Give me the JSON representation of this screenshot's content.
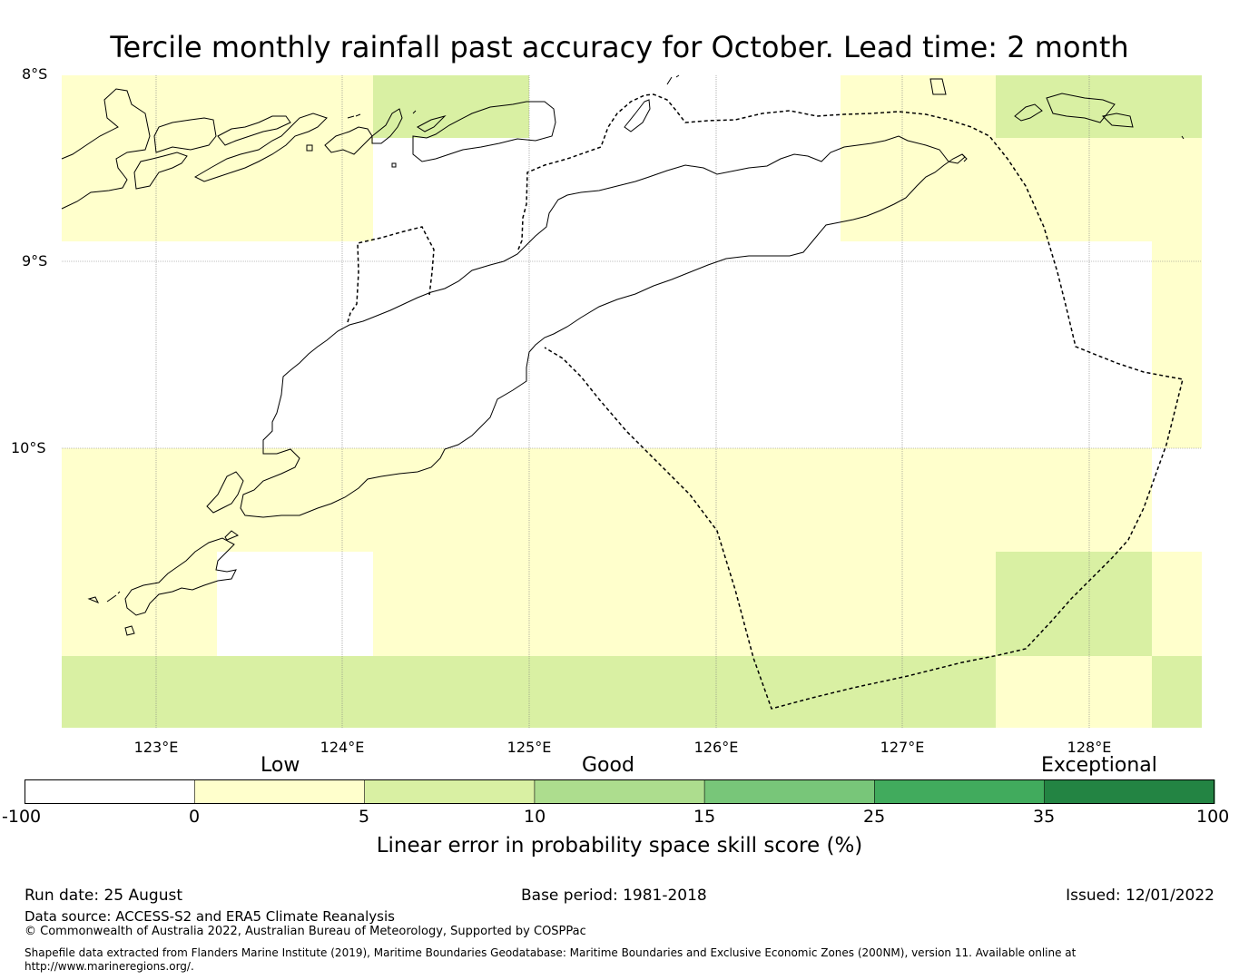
{
  "title": "Tercile monthly rainfall past accuracy for October. Lead time: 2 month",
  "map": {
    "lat_labels": [
      "8°S",
      "9°S",
      "10°S"
    ],
    "lon_labels": [
      "123°E",
      "124°E",
      "125°E",
      "126°E",
      "127°E",
      "128°E"
    ],
    "colors": {
      "white": "#ffffff",
      "low": "#ffffcc",
      "good1": "#d9f0a3",
      "good2": "#addd8e",
      "good3": "#78c679",
      "high1": "#41ab5d",
      "high2": "#238443",
      "coast": "#000000",
      "grid": "#808080"
    }
  },
  "colorbar": {
    "categories": [
      "Low",
      "Good",
      "Exceptional"
    ],
    "ticks": [
      "-100",
      "0",
      "5",
      "10",
      "15",
      "25",
      "35",
      "100"
    ],
    "colors": [
      "#ffffff",
      "#ffffcc",
      "#d9f0a3",
      "#addd8e",
      "#78c679",
      "#41ab5d",
      "#238443"
    ],
    "label": "Linear error in probability space skill score (%)"
  },
  "footer": {
    "run_date": "Run date: 25 August",
    "base_period": "Base period: 1981-2018",
    "issued": "Issued: 12/01/2022",
    "data_source": "Data source: ACCESS-S2 and ERA5 Climate Reanalysis",
    "copyright": "© Commonwealth of Australia 2022, Australian Bureau of Meteorology, Supported by COSPPac",
    "shapefile_line1": "Shapefile data extracted from Flanders Marine Institute (2019), Maritime Boundaries Geodatabase: Maritime Boundaries and Exclusive Economic Zones (200NM), version 11. Available online at",
    "shapefile_line2": "http://www.marineregions.org/."
  }
}
